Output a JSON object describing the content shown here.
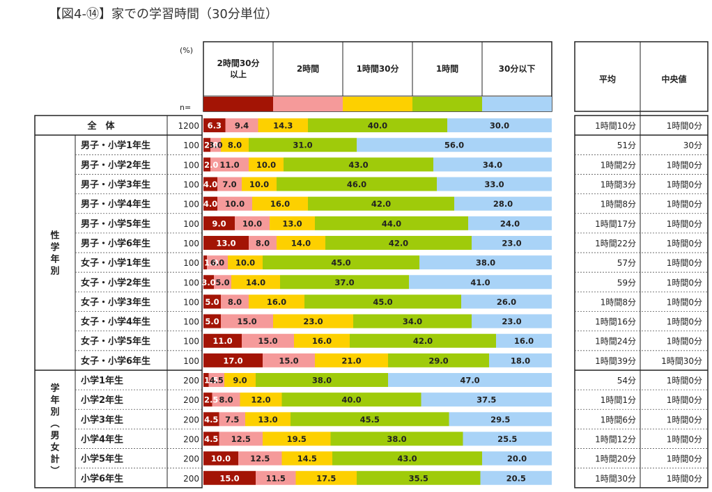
{
  "title": "【図4-⑭】家での学習時間（30分単位）",
  "chart_data": {
    "type": "bar",
    "orientation": "horizontal",
    "stacked": "100%",
    "unit_label": "(%)",
    "n_label": "n=",
    "xlim": [
      0,
      100
    ],
    "series": [
      {
        "name": "2時間30分\n以上",
        "color": "#a31405"
      },
      {
        "name": "2時間",
        "color": "#f59a9a"
      },
      {
        "name": "1時間30分",
        "color": "#fdd000"
      },
      {
        "name": "1時間",
        "color": "#9fcb0a"
      },
      {
        "name": "30分以下",
        "color": "#a9d3f7"
      }
    ],
    "stat_headers": [
      "平均",
      "中央値"
    ],
    "groups": [
      {
        "label": "",
        "rows": [
          0
        ]
      },
      {
        "label": "性\n学\n年\n別",
        "rows": [
          1,
          2,
          3,
          4,
          5,
          6,
          7,
          8,
          9,
          10,
          11,
          12
        ]
      },
      {
        "label": "学\n年\n別\n︵\n男\n女\n計\n︶",
        "rows": [
          13,
          14,
          15,
          16,
          17,
          18
        ]
      }
    ],
    "rows": [
      {
        "label": "全　体",
        "n": "1200",
        "values": [
          6.3,
          9.4,
          14.3,
          40.0,
          30.0
        ],
        "labels": [
          "6.3",
          "9.4",
          "14.3",
          "40.0",
          "30.0"
        ],
        "mean": "1時間10分",
        "median": "1時間0分"
      },
      {
        "label": "男子・小学1年生",
        "n": "100",
        "values": [
          2.0,
          3.0,
          8.0,
          31.0,
          56.0
        ],
        "labels": [
          "2.0",
          "3.0",
          "8.0",
          "31.0",
          "56.0"
        ],
        "mean": "51分",
        "median": "30分"
      },
      {
        "label": "男子・小学2年生",
        "n": "100",
        "values": [
          2.0,
          11.0,
          10.0,
          43.0,
          34.0
        ],
        "labels": [
          "2.0",
          "11.0",
          "10.0",
          "43.0",
          "34.0"
        ],
        "mean": "1時間2分",
        "median": "1時間0分"
      },
      {
        "label": "男子・小学3年生",
        "n": "100",
        "values": [
          4.0,
          7.0,
          10.0,
          46.0,
          33.0
        ],
        "labels": [
          "4.0",
          "7.0",
          "10.0",
          "46.0",
          "33.0"
        ],
        "mean": "1時間3分",
        "median": "1時間0分"
      },
      {
        "label": "男子・小学4年生",
        "n": "100",
        "values": [
          4.0,
          10.0,
          16.0,
          42.0,
          28.0
        ],
        "labels": [
          "4.0",
          "10.0",
          "16.0",
          "42.0",
          "28.0"
        ],
        "mean": "1時間8分",
        "median": "1時間0分"
      },
      {
        "label": "男子・小学5年生",
        "n": "100",
        "values": [
          9.0,
          10.0,
          13.0,
          44.0,
          24.0
        ],
        "labels": [
          "9.0",
          "10.0",
          "13.0",
          "44.0",
          "24.0"
        ],
        "mean": "1時間17分",
        "median": "1時間0分"
      },
      {
        "label": "男子・小学6年生",
        "n": "100",
        "values": [
          13.0,
          8.0,
          14.0,
          42.0,
          23.0
        ],
        "labels": [
          "13.0",
          "8.0",
          "14.0",
          "42.0",
          "23.0"
        ],
        "mean": "1時間22分",
        "median": "1時間0分"
      },
      {
        "label": "女子・小学1年生",
        "n": "100",
        "values": [
          1.0,
          6.0,
          10.0,
          45.0,
          38.0
        ],
        "labels": [
          "1.0",
          "6.0",
          "10.0",
          "45.0",
          "38.0"
        ],
        "mean": "57分",
        "median": "1時間0分"
      },
      {
        "label": "女子・小学2年生",
        "n": "100",
        "values": [
          3.0,
          5.0,
          14.0,
          37.0,
          41.0
        ],
        "labels": [
          "3.0",
          "5.0",
          "14.0",
          "37.0",
          "41.0"
        ],
        "mean": "59分",
        "median": "1時間0分"
      },
      {
        "label": "女子・小学3年生",
        "n": "100",
        "values": [
          5.0,
          8.0,
          16.0,
          45.0,
          26.0
        ],
        "labels": [
          "5.0",
          "8.0",
          "16.0",
          "45.0",
          "26.0"
        ],
        "mean": "1時間8分",
        "median": "1時間0分"
      },
      {
        "label": "女子・小学4年生",
        "n": "100",
        "values": [
          5.0,
          15.0,
          23.0,
          34.0,
          23.0
        ],
        "labels": [
          "5.0",
          "15.0",
          "23.0",
          "34.0",
          "23.0"
        ],
        "mean": "1時間16分",
        "median": "1時間0分"
      },
      {
        "label": "女子・小学5年生",
        "n": "100",
        "values": [
          11.0,
          15.0,
          16.0,
          42.0,
          16.0
        ],
        "labels": [
          "11.0",
          "15.0",
          "16.0",
          "42.0",
          "16.0"
        ],
        "mean": "1時間24分",
        "median": "1時間0分"
      },
      {
        "label": "女子・小学6年生",
        "n": "100",
        "values": [
          17.0,
          15.0,
          21.0,
          29.0,
          18.0
        ],
        "labels": [
          "17.0",
          "15.0",
          "21.0",
          "29.0",
          "18.0"
        ],
        "mean": "1時間39分",
        "median": "1時間30分"
      },
      {
        "label": "小学1年生",
        "n": "200",
        "values": [
          1.5,
          4.5,
          9.0,
          38.0,
          47.0
        ],
        "labels": [
          "1.5",
          "4.5",
          "9.0",
          "38.0",
          "47.0"
        ],
        "mean": "54分",
        "median": "1時間0分"
      },
      {
        "label": "小学2年生",
        "n": "200",
        "values": [
          2.5,
          8.0,
          12.0,
          40.0,
          37.5
        ],
        "labels": [
          "2.5",
          "8.0",
          "12.0",
          "40.0",
          "37.5"
        ],
        "mean": "1時間1分",
        "median": "1時間0分"
      },
      {
        "label": "小学3年生",
        "n": "200",
        "values": [
          4.5,
          7.5,
          13.0,
          45.5,
          29.5
        ],
        "labels": [
          "4.5",
          "7.5",
          "13.0",
          "45.5",
          "29.5"
        ],
        "mean": "1時間6分",
        "median": "1時間0分"
      },
      {
        "label": "小学4年生",
        "n": "200",
        "values": [
          4.5,
          12.5,
          19.5,
          38.0,
          25.5
        ],
        "labels": [
          "4.5",
          "12.5",
          "19.5",
          "38.0",
          "25.5"
        ],
        "mean": "1時間12分",
        "median": "1時間0分"
      },
      {
        "label": "小学5年生",
        "n": "200",
        "values": [
          10.0,
          12.5,
          14.5,
          43.0,
          20.0
        ],
        "labels": [
          "10.0",
          "12.5",
          "14.5",
          "43.0",
          "20.0"
        ],
        "mean": "1時間20分",
        "median": "1時間0分"
      },
      {
        "label": "小学6年生",
        "n": "200",
        "values": [
          15.0,
          11.5,
          17.5,
          35.5,
          20.5
        ],
        "labels": [
          "15.0",
          "11.5",
          "17.5",
          "35.5",
          "20.5"
        ],
        "mean": "1時間30分",
        "median": "1時間0分"
      }
    ]
  }
}
